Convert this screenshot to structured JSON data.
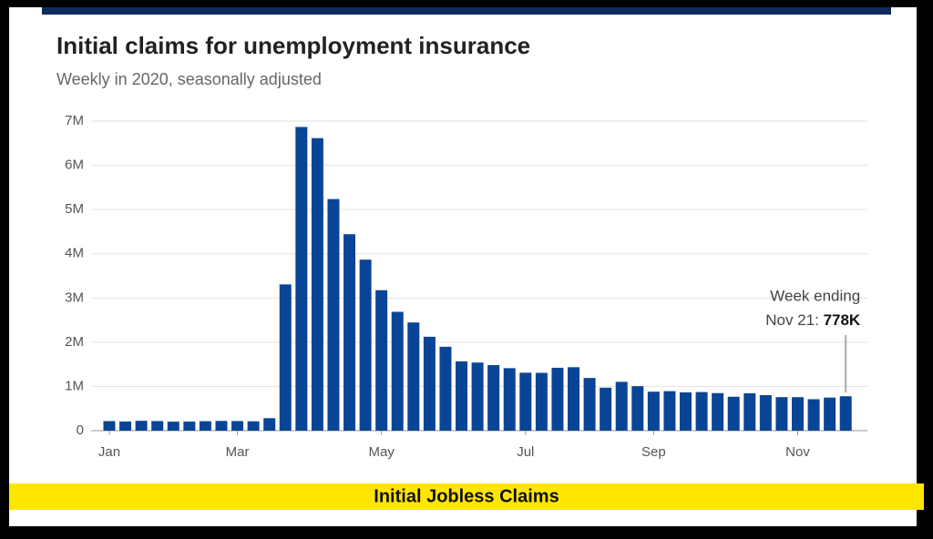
{
  "chart_data": {
    "type": "bar",
    "title": "Initial claims for unemployment insurance",
    "subtitle": "Weekly in 2020, seasonally adjusted",
    "caption": "Initial Jobless Claims",
    "annotation": [
      "Week ending",
      "Nov 21:"
    ],
    "categories": [
      "Jan",
      null,
      null,
      null,
      null,
      null,
      null,
      null,
      "Mar",
      null,
      null,
      null,
      null,
      null,
      null,
      null,
      null,
      "May",
      null,
      null,
      null,
      null,
      null,
      null,
      null,
      null,
      "Jul",
      null,
      null,
      null,
      null,
      null,
      null,
      null,
      "Sep",
      null,
      null,
      null,
      null,
      null,
      null,
      null,
      null,
      "Nov",
      null,
      null,
      null
    ],
    "values": [
      216000,
      207000,
      223000,
      217000,
      203000,
      205000,
      214000,
      220000,
      217000,
      211000,
      282000,
      3307000,
      6867000,
      6615000,
      5237000,
      4442000,
      3867000,
      3176000,
      2687000,
      2446000,
      2123000,
      1897000,
      1566000,
      1540000,
      1482000,
      1413000,
      1310000,
      1307000,
      1422000,
      1435000,
      1191000,
      971000,
      1104000,
      1006000,
      881000,
      893000,
      866000,
      873000,
      849000,
      767000,
      845000,
      802000,
      758000,
      757000,
      711000,
      748000,
      778000
    ],
    "value_labels": [
      null,
      null,
      null,
      null,
      null,
      null,
      null,
      null,
      null,
      null,
      null,
      null,
      null,
      null,
      null,
      null,
      null,
      null,
      null,
      null,
      null,
      null,
      null,
      null,
      null,
      null,
      null,
      null,
      null,
      null,
      null,
      null,
      null,
      null,
      null,
      null,
      null,
      null,
      null,
      null,
      null,
      null,
      null,
      null,
      null,
      null,
      "778K"
    ],
    "color": "#0a4595",
    "ylim": [
      0,
      7000000
    ],
    "yticks": [
      0,
      {
        "value": 1000000,
        "label": "1M"
      },
      {
        "value": 2000000,
        "label": "2M"
      },
      {
        "value": 3000000,
        "label": "3M"
      },
      {
        "value": 4000000,
        "label": "4M"
      },
      {
        "value": 5000000,
        "label": "5M"
      },
      {
        "value": 6000000,
        "label": "6M"
      },
      {
        "value": 7000000,
        "label": "7M"
      }
    ],
    "grid": true
  }
}
